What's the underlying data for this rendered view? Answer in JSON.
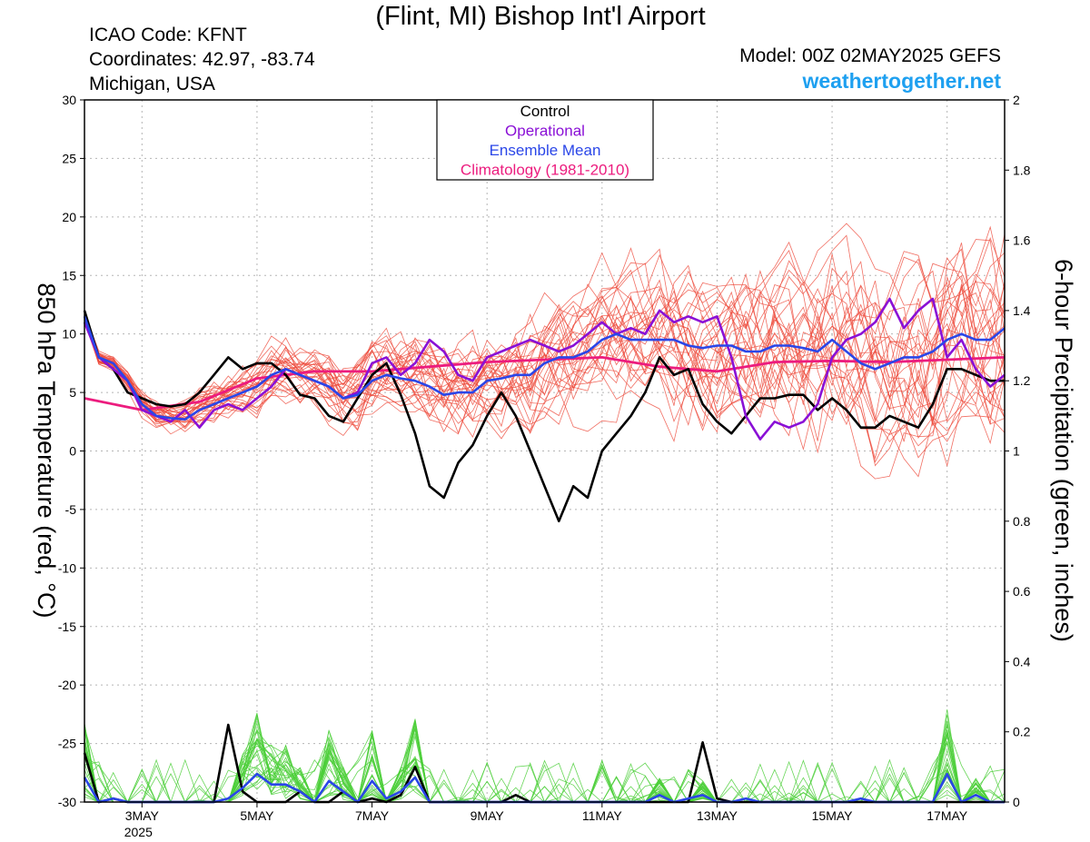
{
  "header": {
    "title": "(Flint, MI) Bishop Int'l Airport",
    "icao": "ICAO Code: KFNT",
    "coords": "Coordinates: 42.97, -83.74",
    "region": "Michigan, USA",
    "model": "Model: 00Z 02MAY2025 GEFS",
    "brand": "weathertogether.net"
  },
  "colors": {
    "control": "#000000",
    "operational": "#8a10d6",
    "ensemble_mean": "#2a46e8",
    "climatology": "#ec1c7e",
    "temp_members": "#ee4b3c",
    "precip_members": "#4ccf3a",
    "brand": "#1ea0f0"
  },
  "chart_data": {
    "type": "line",
    "y_left": {
      "label": "850 hPa Temperature (red, °C)",
      "range": [
        -30,
        30
      ],
      "ticks": [
        "30",
        "25",
        "20",
        "15",
        "10",
        "5",
        "0",
        "-5",
        "-10",
        "-15",
        "-20",
        "-25",
        "-30"
      ]
    },
    "y_right": {
      "label": "6-hour Precipitation (green, inches)",
      "range": [
        0,
        2
      ],
      "ticks": [
        "2",
        "1.8",
        "1.6",
        "1.4",
        "1.2",
        "1",
        "0.8",
        "0.6",
        "0.4",
        "0.2",
        "0"
      ]
    },
    "x": {
      "start_day": 2.0,
      "end_day": 18.0,
      "ticks": [
        {
          "day": 3,
          "label": "3MAY",
          "sub": "2025"
        },
        {
          "day": 5,
          "label": "5MAY",
          "sub": ""
        },
        {
          "day": 7,
          "label": "7MAY",
          "sub": ""
        },
        {
          "day": 9,
          "label": "9MAY",
          "sub": ""
        },
        {
          "day": 11,
          "label": "11MAY",
          "sub": ""
        },
        {
          "day": 13,
          "label": "13MAY",
          "sub": ""
        },
        {
          "day": 15,
          "label": "15MAY",
          "sub": ""
        },
        {
          "day": 17,
          "label": "17MAY",
          "sub": ""
        }
      ]
    },
    "legend": {
      "position": "top-center",
      "items": [
        "Control",
        "Operational",
        "Ensemble Mean",
        "Climatology (1981-2010)"
      ]
    },
    "grid": true,
    "series": [
      {
        "name": "Control",
        "x": [
          2.0,
          2.25,
          2.5,
          2.75,
          3.0,
          3.25,
          3.5,
          3.75,
          4.0,
          4.25,
          4.5,
          4.75,
          5.0,
          5.25,
          5.5,
          5.75,
          6.0,
          6.25,
          6.5,
          6.75,
          7.0,
          7.25,
          7.5,
          7.75,
          8.0,
          8.25,
          8.5,
          8.75,
          9.0,
          9.25,
          9.5,
          9.75,
          10.0,
          10.25,
          10.5,
          10.75,
          11.0,
          11.25,
          11.5,
          11.75,
          12.0,
          12.25,
          12.5,
          12.75,
          13.0,
          13.25,
          13.5,
          13.75,
          14.0,
          14.25,
          14.5,
          14.75,
          15.0,
          15.25,
          15.5,
          15.75,
          16.0,
          16.25,
          16.5,
          16.75,
          17.0,
          17.25,
          17.5,
          17.75,
          18.0
        ],
        "temperature": [
          12,
          8,
          7,
          5,
          4.5,
          4,
          3.8,
          4,
          5,
          6.5,
          8,
          7,
          7.5,
          7.5,
          6.5,
          4.8,
          4.5,
          3,
          2.5,
          4.5,
          6.5,
          7.5,
          4.8,
          1.5,
          -3,
          -4,
          -1,
          0.5,
          3,
          5,
          3,
          0,
          -3,
          -6,
          -3,
          -4,
          0,
          1.5,
          3,
          5,
          8,
          6.5,
          7,
          4,
          2.5,
          1.5,
          3,
          4.5,
          4.5,
          4.8,
          4.8,
          3.5,
          4.5,
          3.5,
          2,
          2,
          3,
          2.5,
          2,
          4,
          7,
          7,
          6.5,
          6,
          6
        ],
        "precip": [
          0.14,
          0.0,
          0.01,
          0.0,
          0.0,
          0.0,
          0.0,
          0.0,
          0.0,
          0.0,
          0.22,
          0.03,
          0.0,
          0.0,
          0.0,
          0.03,
          0.0,
          0.0,
          0.03,
          0.0,
          0.01,
          0.0,
          0.02,
          0.1,
          0.0,
          0.0,
          0.0,
          0.0,
          0.0,
          0.0,
          0.02,
          0.0,
          0.0,
          0.0,
          0.0,
          0.0,
          0.0,
          0.0,
          0.0,
          0.0,
          0.0,
          0.0,
          0.0,
          0.17,
          0.01,
          0.0,
          0.0,
          0.0,
          0.0,
          0.0,
          0.0,
          0.0,
          0.0,
          0.0,
          0.0,
          0.0,
          0.0,
          0.0,
          0.0,
          0.0,
          0.0,
          0.0,
          0.0,
          0.0,
          0.0
        ]
      },
      {
        "name": "Operational",
        "x": [
          2.0,
          2.25,
          2.5,
          2.75,
          3.0,
          3.25,
          3.5,
          3.75,
          4.0,
          4.25,
          4.5,
          4.75,
          5.0,
          5.25,
          5.5,
          5.75,
          6.0,
          6.25,
          6.5,
          6.75,
          7.0,
          7.25,
          7.5,
          7.75,
          8.0,
          8.25,
          8.5,
          8.75,
          9.0,
          9.25,
          9.5,
          9.75,
          10.0,
          10.25,
          10.5,
          10.75,
          11.0,
          11.25,
          11.5,
          11.75,
          12.0,
          12.25,
          12.5,
          12.75,
          13.0,
          13.25,
          13.5,
          13.75,
          14.0,
          14.25,
          14.5,
          14.75,
          15.0,
          15.25,
          15.5,
          15.75,
          16.0,
          16.25,
          16.5,
          16.75,
          17.0,
          17.25,
          17.5,
          17.75,
          18.0
        ],
        "temperature": [
          11,
          8,
          7,
          6,
          3.5,
          3,
          2.5,
          3.5,
          2,
          3.5,
          4,
          3.5,
          4.5,
          5.5,
          7,
          6.5,
          6,
          5.5,
          4.5,
          5,
          7.5,
          8,
          6.5,
          7.5,
          9.5,
          8.5,
          6.5,
          6,
          8,
          8.5,
          9,
          9.5,
          9,
          8.5,
          9,
          10,
          11,
          10,
          10.5,
          10,
          12,
          11,
          11.5,
          11,
          11.5,
          8,
          3,
          1,
          2.5,
          2,
          2.5,
          4,
          8,
          9.5,
          10,
          11,
          13,
          10.5,
          12,
          13,
          8,
          9.5,
          7,
          5.5,
          6.5
        ]
      },
      {
        "name": "Ensemble Mean",
        "x": [
          2.0,
          2.25,
          2.5,
          2.75,
          3.0,
          3.25,
          3.5,
          3.75,
          4.0,
          4.25,
          4.5,
          4.75,
          5.0,
          5.25,
          5.5,
          5.75,
          6.0,
          6.25,
          6.5,
          6.75,
          7.0,
          7.25,
          7.5,
          7.75,
          8.0,
          8.25,
          8.5,
          8.75,
          9.0,
          9.25,
          9.5,
          9.75,
          10.0,
          10.25,
          10.5,
          10.75,
          11.0,
          11.25,
          11.5,
          11.75,
          12.0,
          12.25,
          12.5,
          12.75,
          13.0,
          13.25,
          13.5,
          13.75,
          14.0,
          14.25,
          14.5,
          14.75,
          15.0,
          15.25,
          15.5,
          15.75,
          16.0,
          16.25,
          16.5,
          16.75,
          17.0,
          17.25,
          17.5,
          17.75,
          18.0
        ],
        "temperature": [
          11.5,
          8,
          7.5,
          6,
          4,
          3,
          2.8,
          2.7,
          3.5,
          4,
          4.5,
          5,
          5.5,
          6.5,
          7,
          6.5,
          6,
          5.5,
          4.5,
          4.8,
          6,
          6.5,
          6.2,
          6,
          5.5,
          4.8,
          5,
          5,
          6,
          6.2,
          6.5,
          6.5,
          7.5,
          8,
          8,
          8.5,
          9.5,
          10,
          9.5,
          9.5,
          9.5,
          9.5,
          9,
          8.8,
          9,
          9,
          8.5,
          8.5,
          9,
          9,
          8.8,
          8.5,
          9.5,
          8.5,
          7.5,
          7,
          7.5,
          8,
          8,
          8.5,
          9.5,
          10,
          9.5,
          9.5,
          10.5
        ],
        "precip": [
          0.07,
          0.0,
          0.01,
          0.0,
          0.0,
          0.0,
          0.0,
          0.0,
          0.0,
          0.0,
          0.01,
          0.04,
          0.08,
          0.05,
          0.05,
          0.03,
          0.0,
          0.06,
          0.03,
          0.0,
          0.06,
          0.01,
          0.03,
          0.07,
          0.0,
          0.0,
          0.0,
          0.0,
          0.0,
          0.0,
          0.0,
          0.0,
          0.0,
          0.0,
          0.0,
          0.0,
          0.0,
          0.0,
          0.0,
          0.0,
          0.02,
          0.0,
          0.01,
          0.02,
          0.0,
          0.0,
          0.01,
          0.0,
          0.0,
          0.0,
          0.0,
          0.0,
          0.0,
          0.0,
          0.01,
          0.0,
          0.0,
          0.0,
          0.0,
          0.0,
          0.08,
          0.0,
          0.02,
          0.0,
          0.0
        ]
      },
      {
        "name": "Climatology (1981-2010)",
        "x": [
          2.0,
          3.0,
          4.0,
          5.0,
          6.0,
          7.0,
          8.0,
          9.0,
          10.0,
          11.0,
          12.0,
          13.0,
          14.0,
          15.0,
          16.0,
          17.0,
          18.0
        ],
        "temperature": [
          4.5,
          3.5,
          4.2,
          6.2,
          6.8,
          6.8,
          7.2,
          7.6,
          7.8,
          8.0,
          7.2,
          6.8,
          7.6,
          7.7,
          7.6,
          7.8,
          8.0
        ]
      }
    ]
  }
}
